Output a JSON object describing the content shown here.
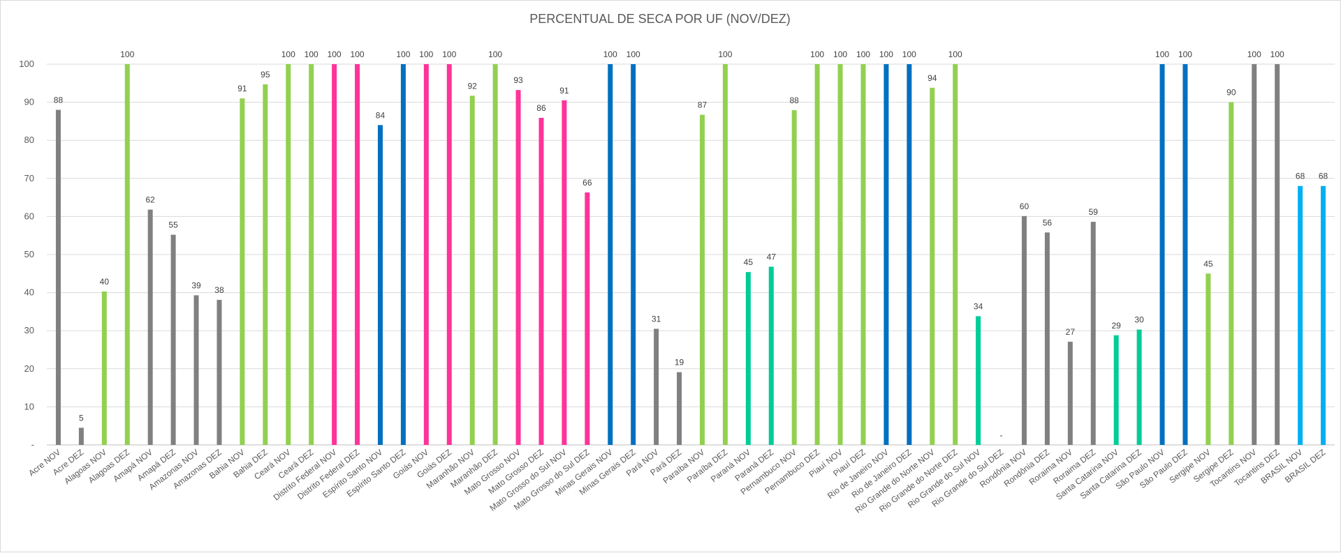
{
  "chart_data": {
    "type": "bar",
    "title": "PERCENTUAL DE SECA POR UF (NOV/DEZ)",
    "xlabel": "",
    "ylabel": "",
    "ylim": [
      0,
      100
    ],
    "yticks": [
      "-",
      "10",
      "20",
      "30",
      "40",
      "50",
      "60",
      "70",
      "80",
      "90",
      "100"
    ],
    "grid": true,
    "legend": "none",
    "colors": {
      "gray": "#808080",
      "green": "#92d050",
      "pink": "#ff3399",
      "blue": "#0070c0",
      "teal": "#00cc99",
      "lightblue": "#00b0f0"
    },
    "points": [
      {
        "category": "Acre NOV",
        "value": 88,
        "label": "88",
        "color": "gray"
      },
      {
        "category": "Acre DEZ",
        "value": 4.5,
        "label": "5",
        "color": "gray"
      },
      {
        "category": "Alagoas NOV",
        "value": 40.3,
        "label": "40",
        "color": "green"
      },
      {
        "category": "Alagoas DEZ",
        "value": 100,
        "label": "100",
        "color": "green"
      },
      {
        "category": "Amapá NOV",
        "value": 61.8,
        "label": "62",
        "color": "gray"
      },
      {
        "category": "Amapá DEZ",
        "value": 55.2,
        "label": "55",
        "color": "gray"
      },
      {
        "category": "Amazonas NOV",
        "value": 39.3,
        "label": "39",
        "color": "gray"
      },
      {
        "category": "Amazonas DEZ",
        "value": 38.1,
        "label": "38",
        "color": "gray"
      },
      {
        "category": "Bahia NOV",
        "value": 91,
        "label": "91",
        "color": "green"
      },
      {
        "category": "Bahia DEZ",
        "value": 94.7,
        "label": "95",
        "color": "green"
      },
      {
        "category": "Ceará NOV",
        "value": 100,
        "label": "100",
        "color": "green"
      },
      {
        "category": "Ceará DEZ",
        "value": 100,
        "label": "100",
        "color": "green"
      },
      {
        "category": "Distrito Federal NOV",
        "value": 100,
        "label": "100",
        "color": "pink"
      },
      {
        "category": "Distrito Federal DEZ",
        "value": 100,
        "label": "100",
        "color": "pink"
      },
      {
        "category": "Espírito Santo NOV",
        "value": 84,
        "label": "84",
        "color": "blue"
      },
      {
        "category": "Espírito Santo DEZ",
        "value": 100,
        "label": "100",
        "color": "blue"
      },
      {
        "category": "Goiás NOV",
        "value": 100,
        "label": "100",
        "color": "pink"
      },
      {
        "category": "Goiás DEZ",
        "value": 100,
        "label": "100",
        "color": "pink"
      },
      {
        "category": "Maranhão NOV",
        "value": 91.7,
        "label": "92",
        "color": "green"
      },
      {
        "category": "Maranhão DEZ",
        "value": 100,
        "label": "100",
        "color": "green"
      },
      {
        "category": "Mato Grosso NOV",
        "value": 93.2,
        "label": "93",
        "color": "pink"
      },
      {
        "category": "Mato Grosso DEZ",
        "value": 85.9,
        "label": "86",
        "color": "pink"
      },
      {
        "category": "Mato Grosso do Sul NOV",
        "value": 90.5,
        "label": "91",
        "color": "pink"
      },
      {
        "category": "Mato Grosso do Sul DEZ",
        "value": 66.3,
        "label": "66",
        "color": "pink"
      },
      {
        "category": "Minas Gerais NOV",
        "value": 100,
        "label": "100",
        "color": "blue"
      },
      {
        "category": "Minas Gerais DEZ",
        "value": 100,
        "label": "100",
        "color": "blue"
      },
      {
        "category": "Pará NOV",
        "value": 30.5,
        "label": "31",
        "color": "gray"
      },
      {
        "category": "Pará DEZ",
        "value": 19.1,
        "label": "19",
        "color": "gray"
      },
      {
        "category": "Paraíba NOV",
        "value": 86.7,
        "label": "87",
        "color": "green"
      },
      {
        "category": "Paraíba DEZ",
        "value": 100,
        "label": "100",
        "color": "green"
      },
      {
        "category": "Paraná NOV",
        "value": 45.4,
        "label": "45",
        "color": "teal"
      },
      {
        "category": "Paraná DEZ",
        "value": 46.8,
        "label": "47",
        "color": "teal"
      },
      {
        "category": "Pernambuco NOV",
        "value": 87.9,
        "label": "88",
        "color": "green"
      },
      {
        "category": "Pernambuco DEZ",
        "value": 100,
        "label": "100",
        "color": "green"
      },
      {
        "category": "Piauí NOV",
        "value": 100,
        "label": "100",
        "color": "green"
      },
      {
        "category": "Piauí DEZ",
        "value": 100,
        "label": "100",
        "color": "green"
      },
      {
        "category": "Rio de Janeiro NOV",
        "value": 100,
        "label": "100",
        "color": "blue"
      },
      {
        "category": "Rio de Janeiro DEZ",
        "value": 100,
        "label": "100",
        "color": "blue"
      },
      {
        "category": "Rio Grande do Norte NOV",
        "value": 93.8,
        "label": "94",
        "color": "green"
      },
      {
        "category": "Rio Grande do Norte DEZ",
        "value": 100,
        "label": "100",
        "color": "green"
      },
      {
        "category": "Rio Grande do Sul NOV",
        "value": 33.8,
        "label": "34",
        "color": "teal"
      },
      {
        "category": "Rio Grande do Sul DEZ",
        "value": 0,
        "label": "-",
        "color": "teal"
      },
      {
        "category": "Rondônia NOV",
        "value": 60.1,
        "label": "60",
        "color": "gray"
      },
      {
        "category": "Rondônia DEZ",
        "value": 55.8,
        "label": "56",
        "color": "gray"
      },
      {
        "category": "Roraima NOV",
        "value": 27.1,
        "label": "27",
        "color": "gray"
      },
      {
        "category": "Roraima DEZ",
        "value": 58.6,
        "label": "59",
        "color": "gray"
      },
      {
        "category": "Santa Catarina NOV",
        "value": 28.8,
        "label": "29",
        "color": "teal"
      },
      {
        "category": "Santa Catarina DEZ",
        "value": 30.3,
        "label": "30",
        "color": "teal"
      },
      {
        "category": "São Paulo NOV",
        "value": 100,
        "label": "100",
        "color": "blue"
      },
      {
        "category": "São Paulo DEZ",
        "value": 100,
        "label": "100",
        "color": "blue"
      },
      {
        "category": "Sergipe NOV",
        "value": 45,
        "label": "45",
        "color": "green"
      },
      {
        "category": "Sergipe DEZ",
        "value": 90,
        "label": "90",
        "color": "green"
      },
      {
        "category": "Tocantins NOV",
        "value": 100,
        "label": "100",
        "color": "gray"
      },
      {
        "category": "Tocantins DEZ",
        "value": 100,
        "label": "100",
        "color": "gray"
      },
      {
        "category": "BRASIL NOV",
        "value": 68,
        "label": "68",
        "color": "lightblue"
      },
      {
        "category": "BRASIL DEZ",
        "value": 68,
        "label": "68",
        "color": "lightblue"
      }
    ]
  }
}
